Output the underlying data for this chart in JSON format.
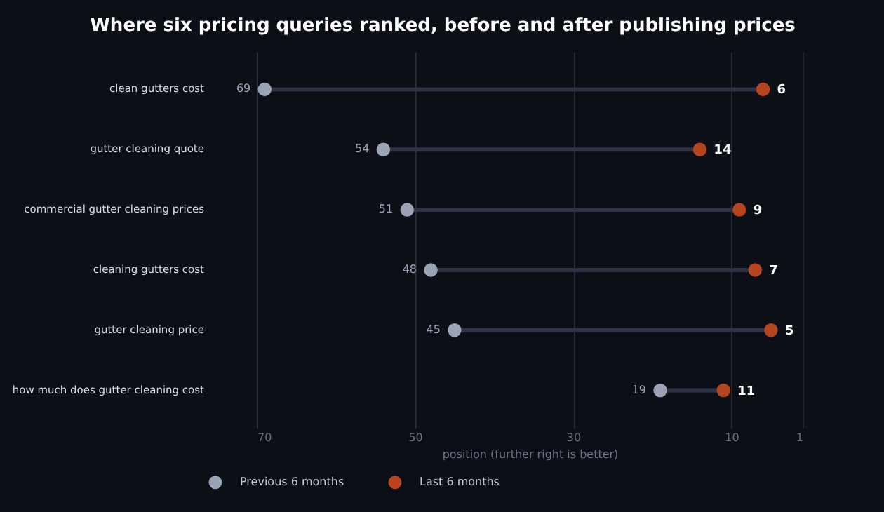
{
  "chart_data": {
    "type": "scatter",
    "orientation": "horizontal",
    "title": "Where six pricing queries ranked, before and after publishing prices",
    "xlabel": "position (further right is better)",
    "categories": [
      "clean gutters cost",
      "gutter cleaning quote",
      "commercial gutter cleaning prices",
      "cleaning gutters cost",
      "gutter cleaning price",
      "how much does gutter cleaning cost"
    ],
    "series": [
      {
        "name": "Previous 6 months",
        "color": "#9aa3b8",
        "values": [
          69,
          54,
          51,
          48,
          45,
          19
        ]
      },
      {
        "name": "Last 6 months",
        "color": "#b5441f",
        "values": [
          6,
          14,
          9,
          7,
          5,
          11
        ]
      }
    ],
    "xlim": [
      70,
      1
    ],
    "xticks": [
      70,
      50,
      30,
      10,
      1
    ],
    "grid": "x",
    "legend": "bottom left",
    "data_labels": true,
    "marker": "circle"
  }
}
